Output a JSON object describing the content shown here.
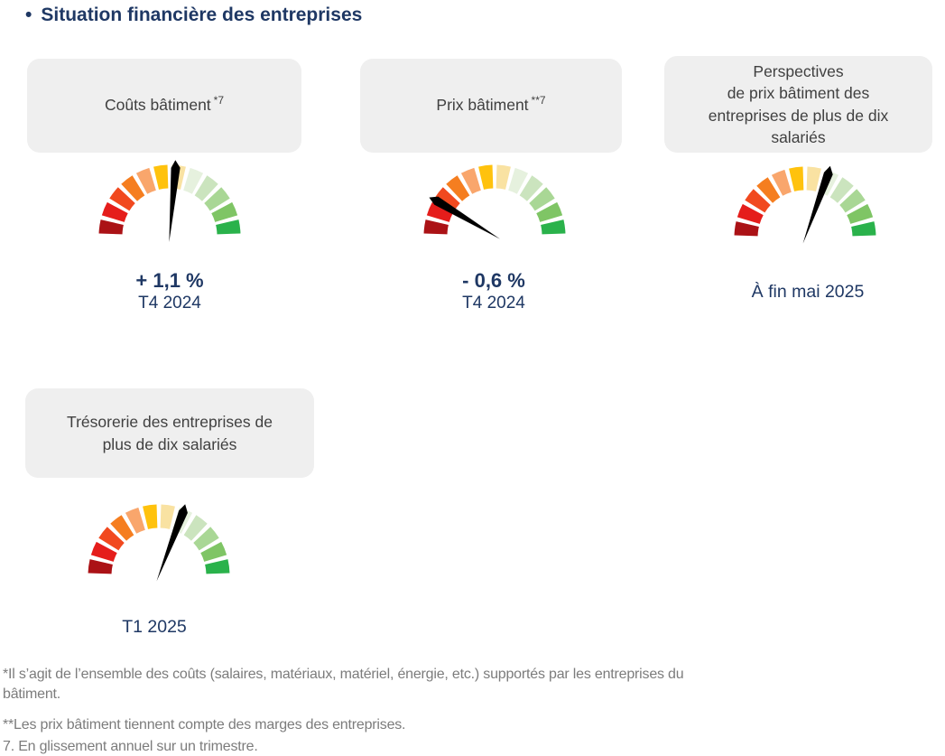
{
  "title_bullet": "•",
  "title": "Situation financière des entreprises",
  "colors": {
    "title_navy": "#1F3864",
    "card_background": "#EFEFEF",
    "card_text": "#404040",
    "footnote_gray": "#7C7C7C",
    "needle": "#000000"
  },
  "chart_data": {
    "type": "gauge",
    "segment_colors": [
      "#AB1216",
      "#E51D1B",
      "#F1491F",
      "#F57E20",
      "#F9A66C",
      "#FFC20D",
      "#F9E2A2",
      "#E6F1DE",
      "#CBE4BE",
      "#A9D795",
      "#7FC565",
      "#2AB24B"
    ],
    "segment_count": 12,
    "scale_span_deg": 180,
    "needle_color": "#000000",
    "gauges": [
      {
        "name": "couts-batiment",
        "card_title": "Coûts bâtiment",
        "card_sup": "*7",
        "value": "+ 1,1 %",
        "period": "T4 2024",
        "needle_angle_deg_from_vertical": 5
      },
      {
        "name": "prix-batiment",
        "card_title": "Prix bâtiment",
        "card_sup": "**7",
        "value": "- 0,6 %",
        "period": "T4 2024",
        "needle_angle_deg_from_vertical": -59
      },
      {
        "name": "perspectives-prix-batiment",
        "card_title_lines": [
          "Perspectives",
          "de prix bâtiment des",
          "entreprises de plus de dix",
          "salariés"
        ],
        "period": "À fin mai 2025",
        "needle_angle_deg_from_vertical": 20
      },
      {
        "name": "tresorerie",
        "card_title_lines": [
          "Trésorerie des entreprises de",
          "plus de dix salariés"
        ],
        "period": "T1 2025",
        "needle_angle_deg_from_vertical": 21
      }
    ]
  },
  "footnotes": [
    {
      "lines": [
        "*Il s’agit de l’ensemble des coûts (salaires, matériaux, matériel, énergie, etc.) supportés par les entreprises du",
        "bâtiment."
      ]
    },
    {
      "lines": [
        "**Les prix bâtiment tiennent compte des marges des entreprises."
      ]
    },
    {
      "lines": [
        "7. En glissement annuel sur un trimestre."
      ]
    }
  ]
}
